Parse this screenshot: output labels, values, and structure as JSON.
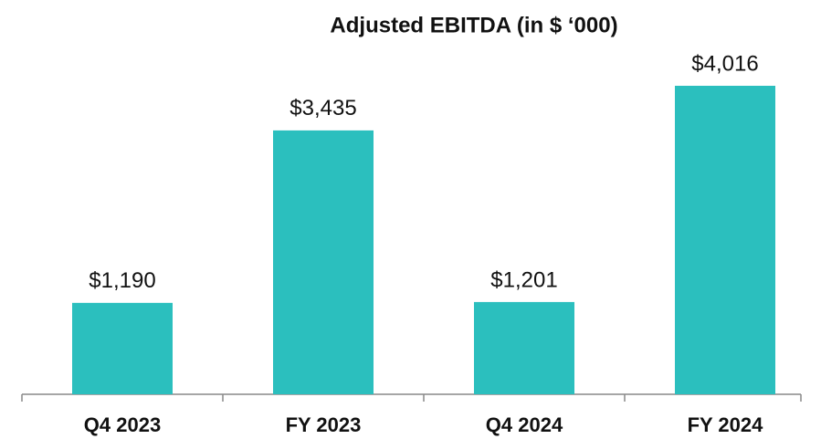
{
  "chart_data": {
    "type": "bar",
    "title": "Adjusted EBITDA (in $ ‘000)",
    "categories": [
      "Q4 2023",
      "FY 2023",
      "Q4 2024",
      "FY 2024"
    ],
    "values": [
      1190,
      3435,
      1201,
      4016
    ],
    "value_labels": [
      "$1,190",
      "$3,435",
      "$1,201",
      "$4,016"
    ],
    "color": "#2bbfbe"
  }
}
